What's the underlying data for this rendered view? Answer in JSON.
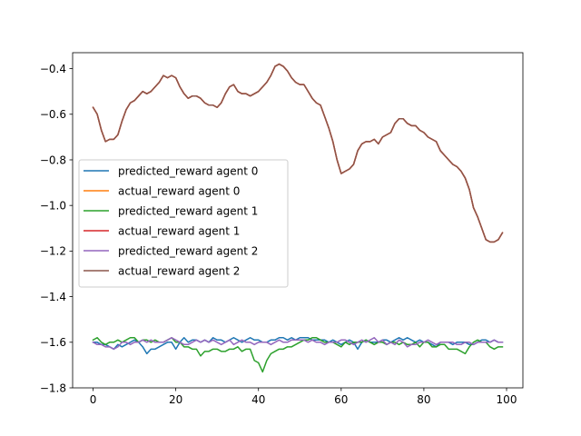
{
  "chart_data": {
    "type": "line",
    "title": "",
    "xlabel": "",
    "ylabel": "",
    "xlim": [
      -4.95,
      103.95
    ],
    "ylim": [
      -1.8,
      -0.33
    ],
    "xticks": [
      0,
      20,
      40,
      60,
      80,
      100
    ],
    "yticks": [
      -1.8,
      -1.6,
      -1.4,
      -1.2,
      -1.0,
      -0.8,
      -0.6,
      -0.4
    ],
    "ytick_labels": [
      "−1.8",
      "−1.6",
      "−1.4",
      "−1.2",
      "−1.0",
      "−0.8",
      "−0.6",
      "−0.4"
    ],
    "grid": false,
    "legend_position": "center-left",
    "series": [
      {
        "name": "predicted_reward agent 0",
        "color": "#1f77b4",
        "x": [
          0,
          1,
          2,
          3,
          4,
          5,
          6,
          7,
          8,
          9,
          10,
          11,
          12,
          13,
          14,
          15,
          16,
          17,
          18,
          19,
          20,
          21,
          22,
          23,
          24,
          25,
          26,
          27,
          28,
          29,
          30,
          31,
          32,
          33,
          34,
          35,
          36,
          37,
          38,
          39,
          40,
          41,
          42,
          43,
          44,
          45,
          46,
          47,
          48,
          49,
          50,
          51,
          52,
          53,
          54,
          55,
          56,
          57,
          58,
          59,
          60,
          61,
          62,
          63,
          64,
          65,
          66,
          67,
          68,
          69,
          70,
          71,
          72,
          73,
          74,
          75,
          76,
          77,
          78,
          79,
          80,
          81,
          82,
          83,
          84,
          85,
          86,
          87,
          88,
          89,
          90,
          91,
          92,
          93,
          94,
          95,
          96,
          97,
          98,
          99
        ],
        "values": [
          -1.6,
          -1.6,
          -1.61,
          -1.61,
          -1.62,
          -1.63,
          -1.61,
          -1.62,
          -1.61,
          -1.6,
          -1.59,
          -1.6,
          -1.62,
          -1.65,
          -1.63,
          -1.63,
          -1.62,
          -1.61,
          -1.6,
          -1.6,
          -1.63,
          -1.6,
          -1.58,
          -1.6,
          -1.59,
          -1.59,
          -1.6,
          -1.59,
          -1.6,
          -1.58,
          -1.59,
          -1.59,
          -1.6,
          -1.59,
          -1.58,
          -1.59,
          -1.6,
          -1.59,
          -1.58,
          -1.59,
          -1.59,
          -1.6,
          -1.6,
          -1.59,
          -1.59,
          -1.58,
          -1.58,
          -1.59,
          -1.58,
          -1.59,
          -1.58,
          -1.58,
          -1.58,
          -1.59,
          -1.59,
          -1.59,
          -1.59,
          -1.6,
          -1.59,
          -1.6,
          -1.61,
          -1.6,
          -1.59,
          -1.6,
          -1.63,
          -1.6,
          -1.59,
          -1.6,
          -1.6,
          -1.6,
          -1.59,
          -1.59,
          -1.6,
          -1.59,
          -1.58,
          -1.59,
          -1.58,
          -1.59,
          -1.6,
          -1.59,
          -1.6,
          -1.6,
          -1.61,
          -1.62,
          -1.6,
          -1.6,
          -1.6,
          -1.61,
          -1.6,
          -1.6,
          -1.6,
          -1.61,
          -1.61,
          -1.6,
          -1.59,
          -1.59,
          -1.6,
          -1.59,
          -1.6,
          -1.6
        ]
      },
      {
        "name": "actual_reward agent 0",
        "color": "#ff7f0e",
        "x": [
          0,
          1,
          2,
          3,
          4,
          5,
          6,
          7,
          8,
          9,
          10,
          11,
          12,
          13,
          14,
          15,
          16,
          17,
          18,
          19,
          20,
          21,
          22,
          23,
          24,
          25,
          26,
          27,
          28,
          29,
          30,
          31,
          32,
          33,
          34,
          35,
          36,
          37,
          38,
          39,
          40,
          41,
          42,
          43,
          44,
          45,
          46,
          47,
          48,
          49,
          50,
          51,
          52,
          53,
          54,
          55,
          56,
          57,
          58,
          59,
          60,
          61,
          62,
          63,
          64,
          65,
          66,
          67,
          68,
          69,
          70,
          71,
          72,
          73,
          74,
          75,
          76,
          77,
          78,
          79,
          80,
          81,
          82,
          83,
          84,
          85,
          86,
          87,
          88,
          89,
          90,
          91,
          92,
          93,
          94,
          95,
          96,
          97,
          98,
          99
        ],
        "values": [
          -0.57,
          -0.6,
          -0.67,
          -0.72,
          -0.71,
          -0.71,
          -0.69,
          -0.63,
          -0.58,
          -0.55,
          -0.54,
          -0.52,
          -0.5,
          -0.51,
          -0.5,
          -0.48,
          -0.46,
          -0.43,
          -0.44,
          -0.43,
          -0.44,
          -0.48,
          -0.51,
          -0.53,
          -0.52,
          -0.52,
          -0.53,
          -0.55,
          -0.56,
          -0.56,
          -0.57,
          -0.55,
          -0.51,
          -0.48,
          -0.47,
          -0.5,
          -0.51,
          -0.51,
          -0.52,
          -0.51,
          -0.5,
          -0.48,
          -0.46,
          -0.43,
          -0.39,
          -0.38,
          -0.39,
          -0.41,
          -0.44,
          -0.46,
          -0.47,
          -0.47,
          -0.5,
          -0.53,
          -0.55,
          -0.56,
          -0.61,
          -0.66,
          -0.72,
          -0.8,
          -0.86,
          -0.85,
          -0.84,
          -0.82,
          -0.76,
          -0.73,
          -0.72,
          -0.72,
          -0.71,
          -0.73,
          -0.7,
          -0.69,
          -0.68,
          -0.64,
          -0.62,
          -0.62,
          -0.64,
          -0.65,
          -0.65,
          -0.67,
          -0.68,
          -0.7,
          -0.71,
          -0.72,
          -0.76,
          -0.78,
          -0.8,
          -0.82,
          -0.83,
          -0.85,
          -0.88,
          -0.93,
          -1.01,
          -1.05,
          -1.1,
          -1.15,
          -1.16,
          -1.16,
          -1.15,
          -1.12
        ]
      },
      {
        "name": "predicted_reward agent 1",
        "color": "#2ca02c",
        "x": [
          0,
          1,
          2,
          3,
          4,
          5,
          6,
          7,
          8,
          9,
          10,
          11,
          12,
          13,
          14,
          15,
          16,
          17,
          18,
          19,
          20,
          21,
          22,
          23,
          24,
          25,
          26,
          27,
          28,
          29,
          30,
          31,
          32,
          33,
          34,
          35,
          36,
          37,
          38,
          39,
          40,
          41,
          42,
          43,
          44,
          45,
          46,
          47,
          48,
          49,
          50,
          51,
          52,
          53,
          54,
          55,
          56,
          57,
          58,
          59,
          60,
          61,
          62,
          63,
          64,
          65,
          66,
          67,
          68,
          69,
          70,
          71,
          72,
          73,
          74,
          75,
          76,
          77,
          78,
          79,
          80,
          81,
          82,
          83,
          84,
          85,
          86,
          87,
          88,
          89,
          90,
          91,
          92,
          93,
          94,
          95,
          96,
          97,
          98,
          99
        ],
        "values": [
          -1.59,
          -1.58,
          -1.6,
          -1.61,
          -1.6,
          -1.6,
          -1.59,
          -1.6,
          -1.59,
          -1.58,
          -1.58,
          -1.6,
          -1.59,
          -1.59,
          -1.6,
          -1.59,
          -1.6,
          -1.6,
          -1.59,
          -1.58,
          -1.6,
          -1.6,
          -1.62,
          -1.62,
          -1.63,
          -1.63,
          -1.66,
          -1.64,
          -1.64,
          -1.63,
          -1.63,
          -1.64,
          -1.64,
          -1.63,
          -1.63,
          -1.62,
          -1.64,
          -1.63,
          -1.63,
          -1.68,
          -1.69,
          -1.73,
          -1.68,
          -1.65,
          -1.64,
          -1.63,
          -1.63,
          -1.62,
          -1.62,
          -1.61,
          -1.6,
          -1.59,
          -1.59,
          -1.58,
          -1.58,
          -1.59,
          -1.6,
          -1.6,
          -1.6,
          -1.61,
          -1.62,
          -1.6,
          -1.61,
          -1.6,
          -1.6,
          -1.6,
          -1.59,
          -1.6,
          -1.61,
          -1.6,
          -1.6,
          -1.61,
          -1.6,
          -1.6,
          -1.61,
          -1.6,
          -1.61,
          -1.61,
          -1.6,
          -1.62,
          -1.6,
          -1.6,
          -1.62,
          -1.62,
          -1.61,
          -1.61,
          -1.63,
          -1.63,
          -1.63,
          -1.64,
          -1.65,
          -1.62,
          -1.6,
          -1.59,
          -1.6,
          -1.6,
          -1.62,
          -1.63,
          -1.62,
          -1.62
        ]
      },
      {
        "name": "actual_reward agent 1",
        "color": "#d62728",
        "x": [
          0,
          1,
          2,
          3,
          4,
          5,
          6,
          7,
          8,
          9,
          10,
          11,
          12,
          13,
          14,
          15,
          16,
          17,
          18,
          19,
          20,
          21,
          22,
          23,
          24,
          25,
          26,
          27,
          28,
          29,
          30,
          31,
          32,
          33,
          34,
          35,
          36,
          37,
          38,
          39,
          40,
          41,
          42,
          43,
          44,
          45,
          46,
          47,
          48,
          49,
          50,
          51,
          52,
          53,
          54,
          55,
          56,
          57,
          58,
          59,
          60,
          61,
          62,
          63,
          64,
          65,
          66,
          67,
          68,
          69,
          70,
          71,
          72,
          73,
          74,
          75,
          76,
          77,
          78,
          79,
          80,
          81,
          82,
          83,
          84,
          85,
          86,
          87,
          88,
          89,
          90,
          91,
          92,
          93,
          94,
          95,
          96,
          97,
          98,
          99
        ],
        "values": [
          -0.57,
          -0.6,
          -0.67,
          -0.72,
          -0.71,
          -0.71,
          -0.69,
          -0.63,
          -0.58,
          -0.55,
          -0.54,
          -0.52,
          -0.5,
          -0.51,
          -0.5,
          -0.48,
          -0.46,
          -0.43,
          -0.44,
          -0.43,
          -0.44,
          -0.48,
          -0.51,
          -0.53,
          -0.52,
          -0.52,
          -0.53,
          -0.55,
          -0.56,
          -0.56,
          -0.57,
          -0.55,
          -0.51,
          -0.48,
          -0.47,
          -0.5,
          -0.51,
          -0.51,
          -0.52,
          -0.51,
          -0.5,
          -0.48,
          -0.46,
          -0.43,
          -0.39,
          -0.38,
          -0.39,
          -0.41,
          -0.44,
          -0.46,
          -0.47,
          -0.47,
          -0.5,
          -0.53,
          -0.55,
          -0.56,
          -0.61,
          -0.66,
          -0.72,
          -0.8,
          -0.86,
          -0.85,
          -0.84,
          -0.82,
          -0.76,
          -0.73,
          -0.72,
          -0.72,
          -0.71,
          -0.73,
          -0.7,
          -0.69,
          -0.68,
          -0.64,
          -0.62,
          -0.62,
          -0.64,
          -0.65,
          -0.65,
          -0.67,
          -0.68,
          -0.7,
          -0.71,
          -0.72,
          -0.76,
          -0.78,
          -0.8,
          -0.82,
          -0.83,
          -0.85,
          -0.88,
          -0.93,
          -1.01,
          -1.05,
          -1.1,
          -1.15,
          -1.16,
          -1.16,
          -1.15,
          -1.12
        ]
      },
      {
        "name": "predicted_reward agent 2",
        "color": "#9467bd",
        "x": [
          0,
          1,
          2,
          3,
          4,
          5,
          6,
          7,
          8,
          9,
          10,
          11,
          12,
          13,
          14,
          15,
          16,
          17,
          18,
          19,
          20,
          21,
          22,
          23,
          24,
          25,
          26,
          27,
          28,
          29,
          30,
          31,
          32,
          33,
          34,
          35,
          36,
          37,
          38,
          39,
          40,
          41,
          42,
          43,
          44,
          45,
          46,
          47,
          48,
          49,
          50,
          51,
          52,
          53,
          54,
          55,
          56,
          57,
          58,
          59,
          60,
          61,
          62,
          63,
          64,
          65,
          66,
          67,
          68,
          69,
          70,
          71,
          72,
          73,
          74,
          75,
          76,
          77,
          78,
          79,
          80,
          81,
          82,
          83,
          84,
          85,
          86,
          87,
          88,
          89,
          90,
          91,
          92,
          93,
          94,
          95,
          96,
          97,
          98,
          99
        ],
        "values": [
          -1.6,
          -1.61,
          -1.61,
          -1.62,
          -1.62,
          -1.63,
          -1.62,
          -1.6,
          -1.6,
          -1.61,
          -1.6,
          -1.6,
          -1.59,
          -1.6,
          -1.59,
          -1.6,
          -1.6,
          -1.6,
          -1.59,
          -1.58,
          -1.59,
          -1.6,
          -1.61,
          -1.61,
          -1.6,
          -1.59,
          -1.6,
          -1.59,
          -1.6,
          -1.59,
          -1.6,
          -1.61,
          -1.6,
          -1.59,
          -1.61,
          -1.6,
          -1.59,
          -1.6,
          -1.6,
          -1.61,
          -1.6,
          -1.6,
          -1.6,
          -1.61,
          -1.6,
          -1.59,
          -1.6,
          -1.6,
          -1.59,
          -1.59,
          -1.59,
          -1.59,
          -1.6,
          -1.59,
          -1.6,
          -1.6,
          -1.61,
          -1.6,
          -1.6,
          -1.6,
          -1.59,
          -1.59,
          -1.6,
          -1.61,
          -1.6,
          -1.59,
          -1.6,
          -1.59,
          -1.58,
          -1.6,
          -1.59,
          -1.61,
          -1.6,
          -1.61,
          -1.59,
          -1.6,
          -1.62,
          -1.61,
          -1.61,
          -1.6,
          -1.6,
          -1.59,
          -1.6,
          -1.61,
          -1.6,
          -1.6,
          -1.6,
          -1.6,
          -1.61,
          -1.61,
          -1.6,
          -1.6,
          -1.61,
          -1.6,
          -1.6,
          -1.6,
          -1.6,
          -1.59,
          -1.6,
          -1.6
        ]
      },
      {
        "name": "actual_reward agent 2",
        "color": "#8c564b",
        "x": [
          0,
          1,
          2,
          3,
          4,
          5,
          6,
          7,
          8,
          9,
          10,
          11,
          12,
          13,
          14,
          15,
          16,
          17,
          18,
          19,
          20,
          21,
          22,
          23,
          24,
          25,
          26,
          27,
          28,
          29,
          30,
          31,
          32,
          33,
          34,
          35,
          36,
          37,
          38,
          39,
          40,
          41,
          42,
          43,
          44,
          45,
          46,
          47,
          48,
          49,
          50,
          51,
          52,
          53,
          54,
          55,
          56,
          57,
          58,
          59,
          60,
          61,
          62,
          63,
          64,
          65,
          66,
          67,
          68,
          69,
          70,
          71,
          72,
          73,
          74,
          75,
          76,
          77,
          78,
          79,
          80,
          81,
          82,
          83,
          84,
          85,
          86,
          87,
          88,
          89,
          90,
          91,
          92,
          93,
          94,
          95,
          96,
          97,
          98,
          99
        ],
        "values": [
          -0.57,
          -0.6,
          -0.67,
          -0.72,
          -0.71,
          -0.71,
          -0.69,
          -0.63,
          -0.58,
          -0.55,
          -0.54,
          -0.52,
          -0.5,
          -0.51,
          -0.5,
          -0.48,
          -0.46,
          -0.43,
          -0.44,
          -0.43,
          -0.44,
          -0.48,
          -0.51,
          -0.53,
          -0.52,
          -0.52,
          -0.53,
          -0.55,
          -0.56,
          -0.56,
          -0.57,
          -0.55,
          -0.51,
          -0.48,
          -0.47,
          -0.5,
          -0.51,
          -0.51,
          -0.52,
          -0.51,
          -0.5,
          -0.48,
          -0.46,
          -0.43,
          -0.39,
          -0.38,
          -0.39,
          -0.41,
          -0.44,
          -0.46,
          -0.47,
          -0.47,
          -0.5,
          -0.53,
          -0.55,
          -0.56,
          -0.61,
          -0.66,
          -0.72,
          -0.8,
          -0.86,
          -0.85,
          -0.84,
          -0.82,
          -0.76,
          -0.73,
          -0.72,
          -0.72,
          -0.71,
          -0.73,
          -0.7,
          -0.69,
          -0.68,
          -0.64,
          -0.62,
          -0.62,
          -0.64,
          -0.65,
          -0.65,
          -0.67,
          -0.68,
          -0.7,
          -0.71,
          -0.72,
          -0.76,
          -0.78,
          -0.8,
          -0.82,
          -0.83,
          -0.85,
          -0.88,
          -0.93,
          -1.01,
          -1.05,
          -1.1,
          -1.15,
          -1.16,
          -1.16,
          -1.15,
          -1.12
        ]
      }
    ]
  }
}
